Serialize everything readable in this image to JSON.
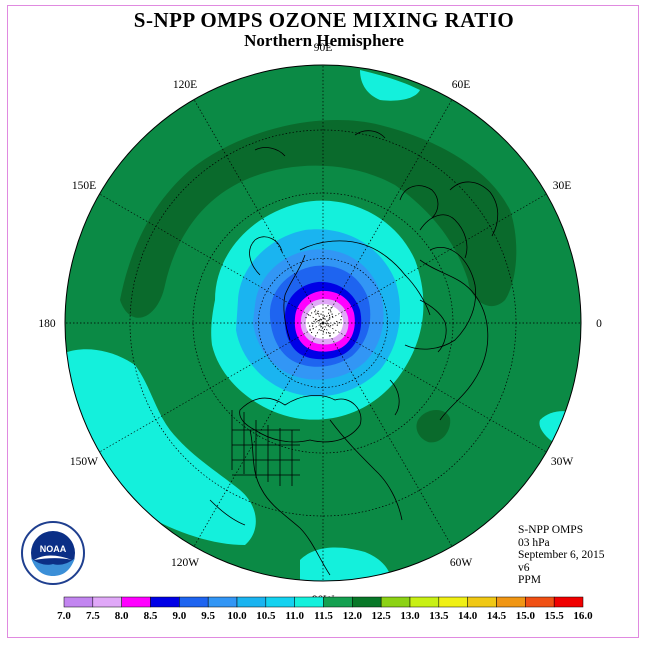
{
  "header": {
    "title": "S-NPP OMPS OZONE MIXING RATIO",
    "subtitle": "Northern Hemisphere"
  },
  "map": {
    "projection": "north polar stereographic",
    "longitude_labels": [
      {
        "text": "90E",
        "lon": 90
      },
      {
        "text": "60E",
        "lon": 60
      },
      {
        "text": "30E",
        "lon": 30
      },
      {
        "text": "0",
        "lon": 0
      },
      {
        "text": "30W",
        "lon": -30
      },
      {
        "text": "60W",
        "lon": -60
      },
      {
        "text": "90W",
        "lon": -90
      },
      {
        "text": "120W",
        "lon": -120
      },
      {
        "text": "150W",
        "lon": -150
      },
      {
        "text": "180",
        "lon": 180
      },
      {
        "text": "150E",
        "lon": 150
      },
      {
        "text": "120E",
        "lon": 120
      }
    ]
  },
  "info": {
    "instrument": "S-NPP OMPS",
    "level": "03 hPa",
    "date": "September 6, 2015",
    "version": "v6",
    "units": "PPM"
  },
  "logo": {
    "text": "NOAA"
  },
  "colorbar": {
    "labels": [
      "7.0",
      "7.5",
      "8.0",
      "8.5",
      "9.0",
      "9.5",
      "10.0",
      "10.5",
      "11.0",
      "11.5",
      "12.0",
      "12.5",
      "13.0",
      "13.5",
      "14.0",
      "14.5",
      "15.0",
      "15.5",
      "16.0"
    ],
    "colors": [
      "#c285f0",
      "#e0a8f8",
      "#ff00ff",
      "#0000e6",
      "#1e64f0",
      "#3296f5",
      "#1ab4f0",
      "#14d2f0",
      "#14f0dc",
      "#14a050",
      "#087828",
      "#8cd214",
      "#c8f014",
      "#f0f014",
      "#f0c814",
      "#f09614",
      "#f05014",
      "#f00000",
      "#a0603c"
    ]
  },
  "fields": {
    "ocean": "#0b8a45",
    "dark": "#0a6a2c",
    "cyan": "#14f0dc",
    "l1": "#1ab4f0",
    "l2": "#3296f5",
    "l3": "#1e64f0",
    "l4": "#0000e6",
    "l5": "#ff00ff",
    "l6": "#e0a8f8"
  }
}
